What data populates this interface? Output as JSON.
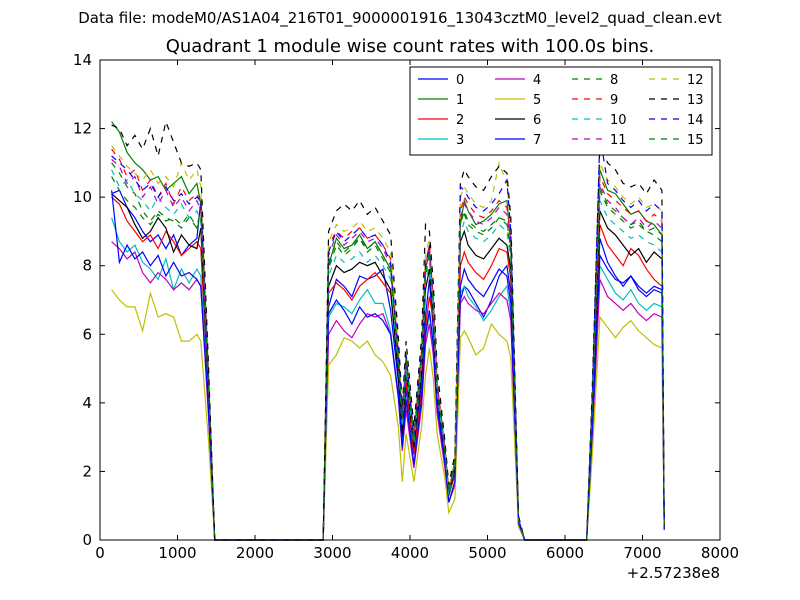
{
  "header": {
    "suptitle": "Data file: modeM0/AS1A04_216T01_9000001916_13043cztM0_level2_quad_clean.evt",
    "title": "Quadrant 1 module wise count rates with 100.0s bins."
  },
  "chart_data": {
    "type": "line",
    "title": "Quadrant 1 module wise count rates with 100.0s bins.",
    "xlabel": "",
    "ylabel": "",
    "xlim": [
      0,
      8000
    ],
    "ylim": [
      0,
      14
    ],
    "x_offset_label": "+2.57238e8",
    "x_ticks": [
      0,
      1000,
      2000,
      3000,
      4000,
      5000,
      6000,
      7000,
      8000
    ],
    "y_ticks": [
      0,
      2,
      4,
      6,
      8,
      10,
      12,
      14
    ],
    "grid": false,
    "legend_position": "top-right",
    "x": [
      150,
      250,
      350,
      450,
      550,
      650,
      750,
      850,
      950,
      1050,
      1150,
      1250,
      1300,
      1400,
      1480,
      2880,
      2950,
      3050,
      3150,
      3250,
      3350,
      3450,
      3550,
      3650,
      3750,
      3850,
      3900,
      3950,
      4050,
      4150,
      4200,
      4250,
      4300,
      4350,
      4450,
      4500,
      4580,
      4650,
      4700,
      4750,
      4850,
      4950,
      5050,
      5150,
      5250,
      5300,
      5400,
      5480,
      6280,
      6350,
      6450,
      6550,
      6650,
      6750,
      6850,
      6950,
      7050,
      7150,
      7250,
      7280
    ],
    "series": [
      {
        "name": "0",
        "color": "#0000ff",
        "dash": "solid",
        "values": [
          10.1,
          10.2,
          9.7,
          9.4,
          9.0,
          8.7,
          8.9,
          8.5,
          8.9,
          8.3,
          8.6,
          8.8,
          9.9,
          4.2,
          0,
          0,
          6.8,
          7.6,
          7.4,
          7.1,
          7.7,
          7.6,
          7.7,
          7.9,
          6.7,
          4.6,
          3.0,
          4.4,
          2.5,
          4.6,
          6.5,
          7.6,
          6.1,
          4.2,
          2.4,
          1.3,
          2.0,
          7.0,
          7.4,
          7.3,
          6.9,
          6.5,
          7.0,
          7.7,
          8.0,
          7.2,
          0.5,
          0,
          0,
          3.3,
          8.8,
          8.1,
          7.7,
          7.4,
          7.7,
          7.3,
          7.1,
          7.3,
          7.2,
          0.4
        ]
      },
      {
        "name": "1",
        "color": "#008000",
        "dash": "solid",
        "values": [
          12.2,
          11.9,
          11.3,
          11.0,
          10.8,
          10.5,
          10.6,
          10.2,
          10.4,
          10.6,
          10.1,
          10.4,
          9.8,
          4.8,
          0,
          0,
          8.0,
          8.8,
          8.5,
          8.6,
          8.9,
          8.5,
          8.7,
          8.3,
          7.9,
          5.3,
          3.4,
          5.2,
          2.9,
          5.3,
          7.9,
          8.4,
          6.8,
          4.5,
          2.7,
          1.4,
          2.3,
          9.2,
          9.9,
          9.6,
          9.2,
          9.3,
          9.5,
          9.8,
          9.9,
          8.6,
          0.6,
          0,
          0,
          3.9,
          10.8,
          10.2,
          10.1,
          9.8,
          9.5,
          9.6,
          9.3,
          9.2,
          8.9,
          0.4
        ]
      },
      {
        "name": "2",
        "color": "#ff0000",
        "dash": "solid",
        "values": [
          10.0,
          9.8,
          9.3,
          9.0,
          8.7,
          8.9,
          8.5,
          9.0,
          8.7,
          8.3,
          8.5,
          8.7,
          8.5,
          4.2,
          0,
          0,
          7.2,
          7.5,
          7.3,
          7.0,
          7.4,
          7.6,
          7.8,
          7.5,
          7.2,
          5.0,
          3.2,
          4.6,
          2.5,
          4.3,
          6.2,
          7.1,
          6.4,
          4.3,
          2.6,
          1.3,
          1.9,
          8.0,
          8.4,
          8.1,
          7.8,
          7.6,
          8.0,
          8.5,
          8.4,
          7.6,
          0.5,
          0,
          0,
          3.4,
          9.2,
          8.6,
          8.3,
          8.0,
          8.5,
          8.3,
          7.9,
          7.6,
          7.4,
          0.4
        ]
      },
      {
        "name": "3",
        "color": "#00bfbf",
        "dash": "solid",
        "values": [
          9.4,
          8.7,
          8.4,
          8.6,
          8.1,
          7.9,
          7.6,
          8.2,
          7.3,
          7.9,
          7.5,
          7.9,
          7.7,
          3.9,
          0,
          0,
          6.5,
          6.9,
          6.8,
          6.6,
          7.0,
          7.3,
          6.9,
          6.9,
          6.1,
          4.2,
          2.7,
          4.0,
          2.2,
          4.0,
          5.9,
          6.6,
          5.6,
          3.8,
          2.2,
          1.1,
          1.7,
          7.2,
          7.4,
          7.1,
          6.8,
          6.4,
          6.7,
          7.1,
          7.4,
          6.6,
          0.5,
          0,
          0,
          3.0,
          8.0,
          7.6,
          7.2,
          7.0,
          7.3,
          6.9,
          6.7,
          6.9,
          6.8,
          0.3
        ]
      },
      {
        "name": "4",
        "color": "#bf00bf",
        "dash": "solid",
        "values": [
          8.7,
          8.5,
          8.2,
          8.4,
          7.8,
          7.5,
          7.8,
          7.6,
          7.3,
          7.5,
          7.3,
          7.6,
          7.4,
          3.6,
          0,
          0,
          6.0,
          6.4,
          6.1,
          5.9,
          6.3,
          6.6,
          6.5,
          6.6,
          6.0,
          4.1,
          2.6,
          3.8,
          2.1,
          3.9,
          5.7,
          6.3,
          5.4,
          3.7,
          2.1,
          1.1,
          1.6,
          6.9,
          7.1,
          6.9,
          6.7,
          6.6,
          6.9,
          7.2,
          7.0,
          6.4,
          0.4,
          0,
          0,
          2.8,
          7.6,
          7.1,
          6.9,
          6.7,
          6.9,
          6.6,
          6.4,
          6.6,
          6.5,
          0.3
        ]
      },
      {
        "name": "5",
        "color": "#bfbf00",
        "dash": "solid",
        "values": [
          7.3,
          7.0,
          6.8,
          6.8,
          6.1,
          7.2,
          6.5,
          6.6,
          6.5,
          5.8,
          5.8,
          6.0,
          5.8,
          2.9,
          0,
          0,
          5.1,
          5.4,
          5.9,
          5.8,
          5.6,
          5.8,
          5.4,
          5.2,
          4.8,
          3.3,
          1.7,
          3.1,
          1.7,
          3.3,
          4.8,
          5.6,
          4.7,
          3.1,
          1.8,
          0.8,
          1.2,
          5.9,
          6.1,
          5.9,
          5.4,
          5.6,
          6.3,
          6.0,
          5.8,
          5.3,
          0.4,
          0,
          0,
          2.4,
          6.5,
          6.2,
          5.9,
          6.2,
          6.4,
          6.1,
          5.9,
          5.7,
          5.6,
          0.3
        ]
      },
      {
        "name": "6",
        "color": "#000000",
        "dash": "solid",
        "values": [
          10.1,
          9.9,
          9.7,
          9.2,
          8.8,
          9.0,
          9.4,
          9.1,
          8.4,
          8.9,
          8.6,
          8.5,
          9.1,
          4.3,
          0,
          0,
          7.4,
          8.0,
          7.8,
          7.9,
          8.1,
          8.0,
          8.1,
          7.7,
          7.3,
          4.8,
          3.1,
          4.9,
          2.7,
          4.9,
          7.3,
          7.9,
          6.5,
          4.3,
          2.5,
          1.3,
          2.1,
          8.7,
          9.0,
          8.6,
          8.3,
          8.2,
          8.5,
          8.8,
          8.6,
          7.9,
          0.6,
          0,
          0,
          3.6,
          9.6,
          9.1,
          8.9,
          8.6,
          8.3,
          8.5,
          8.1,
          8.4,
          8.2,
          0.4
        ]
      },
      {
        "name": "7",
        "color": "#0000ff",
        "dash": "solid",
        "values": [
          10.2,
          8.1,
          8.6,
          8.2,
          8.4,
          8.0,
          8.3,
          7.7,
          8.1,
          7.7,
          7.8,
          7.6,
          7.4,
          3.8,
          0,
          0,
          6.6,
          7.0,
          6.7,
          6.3,
          6.8,
          6.5,
          6.6,
          6.4,
          6.0,
          4.2,
          2.7,
          4.1,
          2.2,
          4.1,
          6.0,
          6.7,
          5.7,
          3.9,
          2.3,
          1.1,
          1.7,
          7.4,
          7.9,
          7.6,
          7.3,
          7.1,
          7.5,
          7.9,
          7.7,
          6.9,
          0.5,
          0,
          0,
          3.1,
          8.3,
          7.9,
          7.6,
          7.5,
          7.7,
          7.4,
          7.2,
          7.4,
          7.3,
          0.3
        ]
      },
      {
        "name": "8",
        "color": "#008000",
        "dash": "dashed",
        "values": [
          11.0,
          10.7,
          10.3,
          10.1,
          9.6,
          9.3,
          9.6,
          9.4,
          9.3,
          9.1,
          9.4,
          9.1,
          9.7,
          4.6,
          0,
          0,
          7.9,
          8.6,
          8.3,
          8.5,
          8.8,
          8.4,
          8.6,
          8.2,
          7.8,
          5.2,
          3.4,
          5.2,
          2.9,
          5.2,
          7.7,
          8.3,
          6.7,
          4.4,
          2.6,
          1.4,
          2.2,
          9.2,
          9.6,
          9.3,
          9.1,
          9.0,
          9.2,
          9.4,
          9.3,
          8.5,
          0.6,
          0,
          0,
          3.8,
          10.3,
          9.8,
          9.6,
          9.4,
          9.2,
          9.3,
          9.0,
          8.9,
          8.7,
          0.4
        ]
      },
      {
        "name": "9",
        "color": "#ff0000",
        "dash": "dashed",
        "values": [
          11.4,
          11.1,
          10.6,
          10.8,
          10.2,
          10.5,
          10.0,
          10.4,
          9.8,
          10.3,
          9.9,
          10.1,
          9.8,
          4.7,
          0,
          0,
          8.6,
          9.0,
          8.8,
          9.0,
          9.1,
          8.8,
          8.9,
          8.6,
          8.2,
          5.5,
          3.6,
          5.4,
          3.0,
          5.5,
          8.1,
          8.6,
          7.0,
          4.6,
          2.7,
          1.4,
          2.3,
          9.6,
          10.0,
          9.8,
          9.5,
          9.4,
          9.6,
          9.9,
          9.7,
          8.9,
          0.6,
          0,
          0,
          4.0,
          10.6,
          10.1,
          9.9,
          9.7,
          9.5,
          9.6,
          9.3,
          9.5,
          9.3,
          0.4
        ]
      },
      {
        "name": "10",
        "color": "#00bfbf",
        "dash": "dashed",
        "values": [
          10.8,
          10.3,
          10.5,
          10.1,
          9.9,
          9.6,
          10.0,
          9.7,
          9.5,
          9.8,
          9.4,
          9.6,
          9.3,
          4.5,
          0,
          0,
          7.7,
          8.3,
          8.1,
          8.2,
          8.4,
          8.1,
          8.3,
          8.0,
          7.6,
          5.1,
          3.3,
          5.0,
          2.8,
          5.1,
          7.5,
          8.1,
          6.6,
          4.3,
          2.6,
          1.3,
          2.2,
          8.9,
          9.3,
          9.0,
          8.8,
          8.7,
          8.9,
          9.2,
          9.0,
          8.2,
          0.6,
          0,
          0,
          3.7,
          9.9,
          9.4,
          9.2,
          9.0,
          8.8,
          8.9,
          8.7,
          8.6,
          8.4,
          0.4
        ]
      },
      {
        "name": "11",
        "color": "#bf00bf",
        "dash": "dashed",
        "values": [
          11.1,
          10.9,
          10.4,
          10.6,
          10.0,
          10.3,
          9.8,
          10.2,
          9.7,
          10.0,
          9.6,
          9.9,
          9.6,
          4.6,
          0,
          0,
          8.3,
          8.9,
          8.6,
          8.8,
          9.0,
          8.7,
          8.8,
          8.5,
          8.0,
          5.4,
          3.5,
          5.3,
          3.0,
          5.4,
          7.9,
          8.5,
          6.9,
          4.5,
          2.7,
          1.4,
          2.3,
          9.4,
          9.8,
          9.6,
          9.3,
          9.2,
          9.4,
          9.7,
          9.5,
          8.7,
          0.6,
          0,
          0,
          3.9,
          10.4,
          9.9,
          9.7,
          9.4,
          9.2,
          9.4,
          9.1,
          9.3,
          9.1,
          0.4
        ]
      },
      {
        "name": "12",
        "color": "#bfbf00",
        "dash": "dashed",
        "values": [
          11.5,
          11.2,
          10.9,
          10.7,
          10.5,
          10.8,
          10.4,
          10.6,
          10.3,
          11.0,
          10.5,
          10.8,
          10.3,
          4.9,
          0,
          0,
          8.7,
          9.2,
          9.0,
          9.1,
          9.3,
          9.0,
          9.1,
          8.8,
          8.4,
          5.6,
          3.7,
          5.5,
          3.1,
          5.6,
          8.3,
          8.8,
          7.2,
          4.7,
          2.8,
          1.5,
          2.4,
          10.0,
          10.3,
          10.1,
          9.8,
          9.7,
          9.9,
          11.0,
          10.4,
          9.1,
          0.6,
          0,
          0,
          4.1,
          11.0,
          10.5,
          10.3,
          10.0,
          9.8,
          10.0,
          9.7,
          9.8,
          9.6,
          0.4
        ]
      },
      {
        "name": "13",
        "color": "#000000",
        "dash": "dashed",
        "values": [
          12.1,
          12.0,
          11.5,
          11.8,
          11.4,
          12.0,
          11.2,
          12.2,
          11.6,
          11.0,
          10.9,
          11.0,
          10.8,
          5.1,
          0,
          0,
          9.0,
          9.6,
          9.8,
          9.6,
          9.9,
          9.5,
          9.7,
          9.3,
          8.9,
          5.9,
          3.9,
          5.8,
          3.3,
          5.9,
          9.2,
          9.0,
          7.5,
          5.0,
          2.9,
          1.6,
          2.5,
          10.4,
          10.8,
          10.6,
          10.3,
          10.2,
          10.6,
          10.9,
          10.7,
          9.4,
          0.7,
          0,
          0,
          4.3,
          11.6,
          11.0,
          10.8,
          10.4,
          10.3,
          10.4,
          10.1,
          10.5,
          10.2,
          0.4
        ]
      },
      {
        "name": "14",
        "color": "#0000ff",
        "dash": "dashed",
        "values": [
          11.2,
          11.0,
          10.8,
          10.5,
          10.2,
          10.4,
          10.0,
          10.3,
          9.9,
          10.1,
          9.8,
          10.0,
          9.9,
          4.7,
          0,
          0,
          8.4,
          9.0,
          8.7,
          8.9,
          9.1,
          8.8,
          8.9,
          8.6,
          8.1,
          5.5,
          3.6,
          5.4,
          3.0,
          5.5,
          8.0,
          8.6,
          7.0,
          4.6,
          2.7,
          1.4,
          2.3,
          10.3,
          10.2,
          10.0,
          9.7,
          9.6,
          9.8,
          10.1,
          10.5,
          9.0,
          0.6,
          0,
          0,
          4.0,
          11.8,
          10.4,
          10.2,
          9.9,
          9.7,
          9.9,
          9.6,
          9.8,
          9.6,
          0.4
        ]
      },
      {
        "name": "15",
        "color": "#008000",
        "dash": "dashed",
        "values": [
          10.6,
          10.2,
          9.9,
          9.7,
          9.4,
          9.2,
          9.5,
          9.3,
          9.4,
          9.2,
          9.5,
          9.1,
          9.4,
          4.5,
          0,
          0,
          8.1,
          8.7,
          8.4,
          8.6,
          8.8,
          8.5,
          8.7,
          8.3,
          7.9,
          5.3,
          3.5,
          5.3,
          2.9,
          5.3,
          7.8,
          8.4,
          6.8,
          4.5,
          2.6,
          1.4,
          2.3,
          9.3,
          9.5,
          9.2,
          9.0,
          8.9,
          9.1,
          9.4,
          9.2,
          8.4,
          0.6,
          0,
          0,
          3.8,
          10.2,
          9.7,
          9.5,
          9.3,
          9.1,
          9.2,
          9.0,
          9.1,
          8.9,
          0.4
        ]
      }
    ]
  }
}
